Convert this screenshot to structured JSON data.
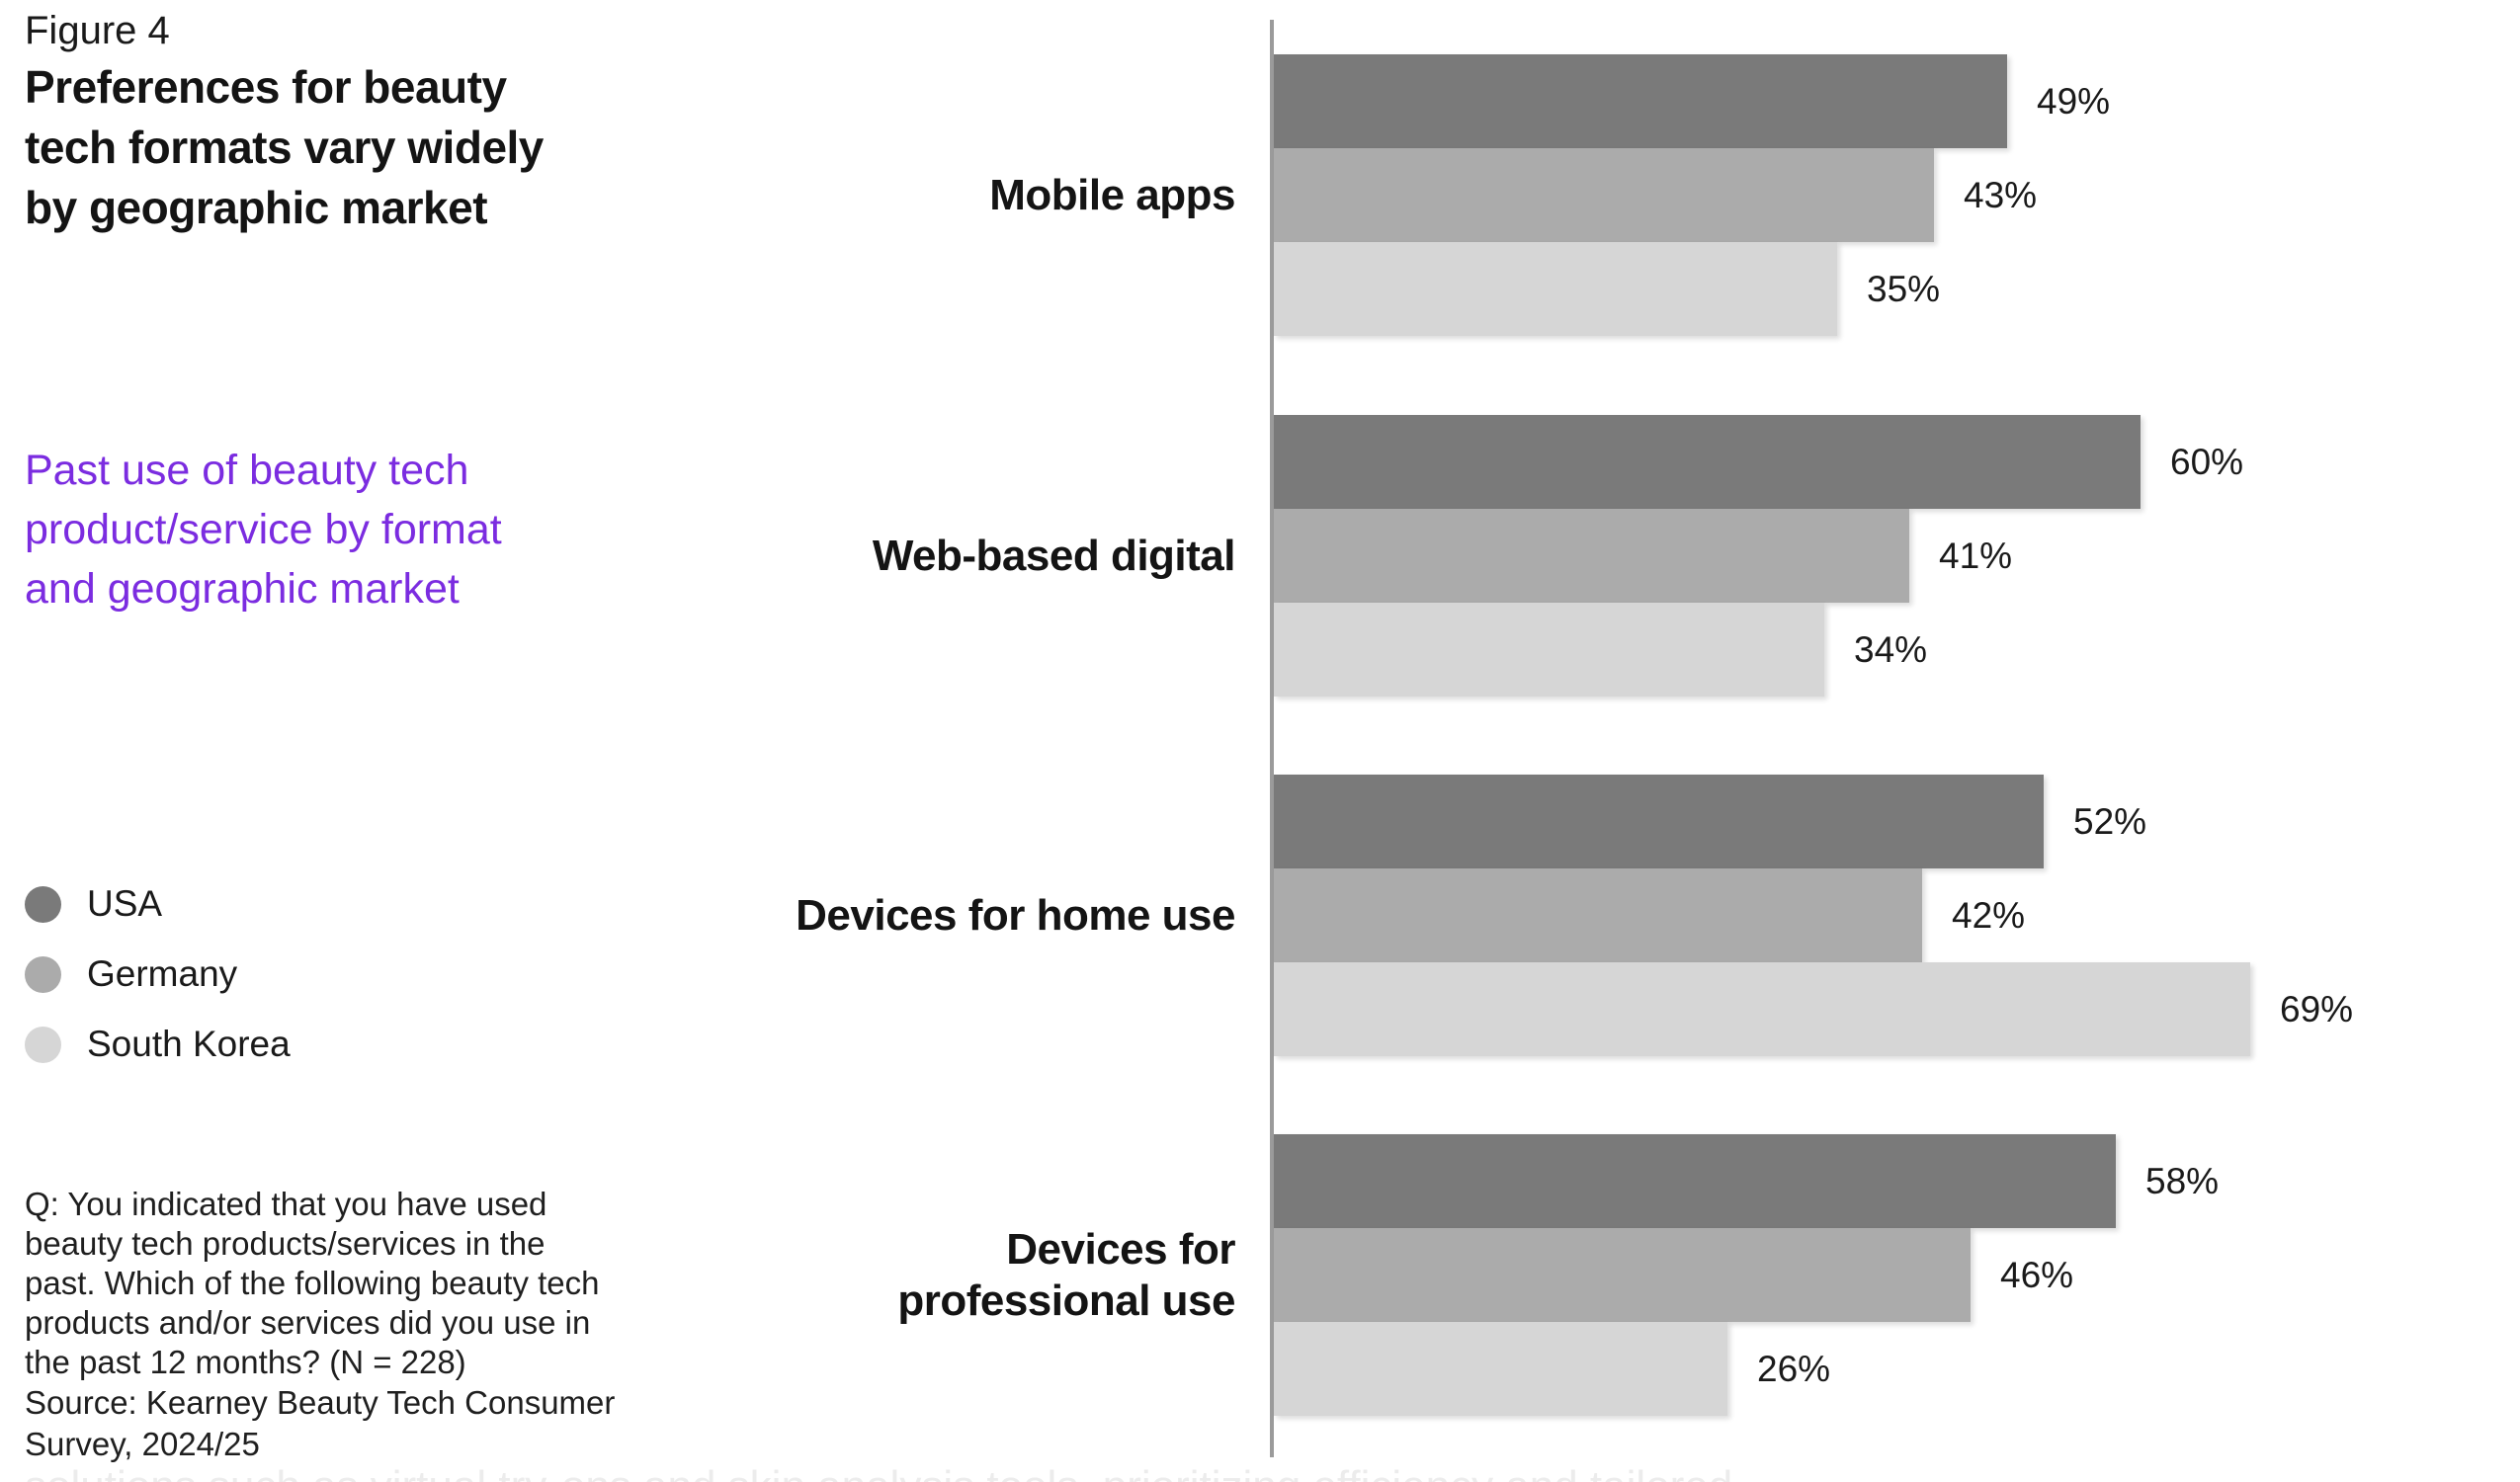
{
  "figure_label": "Figure 4",
  "title": "Preferences for beauty\ntech formats vary widely\nby geographic market",
  "subtitle": "Past use of beauty tech\nproduct/service by format\nand geographic market",
  "legend": [
    {
      "label": "USA",
      "color": "#7a7a7a"
    },
    {
      "label": "Germany",
      "color": "#ababab"
    },
    {
      "label": "South Korea",
      "color": "#d6d6d6"
    }
  ],
  "question": "Q: You indicated that you have used\nbeauty tech products/services in the\npast. Which of the following beauty tech\nproducts and/or services did you use in\nthe past 12 months? (N = 228)",
  "source": "Source: Kearney Beauty Tech Consumer\nSurvey, 2024/25",
  "background_text": "solutions such as virtual try-ons and skin analysis tools, prioritizing efficiency and tailored",
  "colors": {
    "accent_purple": "#7b2ce0",
    "text": "#1a1a1a",
    "axis": "#9b9b9b",
    "usa_bar": "#7a7a7a",
    "germany_bar": "#ababab",
    "south_korea_bar": "#d6d6d6"
  },
  "chart_data": {
    "type": "bar",
    "orientation": "horizontal",
    "categories": [
      "Mobile apps",
      "Web-based digital",
      "Devices for home use",
      "Devices for\nprofessional use"
    ],
    "series": [
      {
        "name": "USA",
        "color": "#7a7a7a",
        "values": [
          49,
          60,
          52,
          58
        ]
      },
      {
        "name": "Germany",
        "color": "#ababab",
        "values": [
          43,
          41,
          42,
          46
        ]
      },
      {
        "name": "South Korea",
        "color": "#d6d6d6",
        "values": [
          35,
          34,
          69,
          26
        ]
      }
    ],
    "value_suffix": "%",
    "value_labels_shown": true,
    "xlim": [
      0,
      100
    ],
    "grid": false,
    "legend_position": "left"
  }
}
